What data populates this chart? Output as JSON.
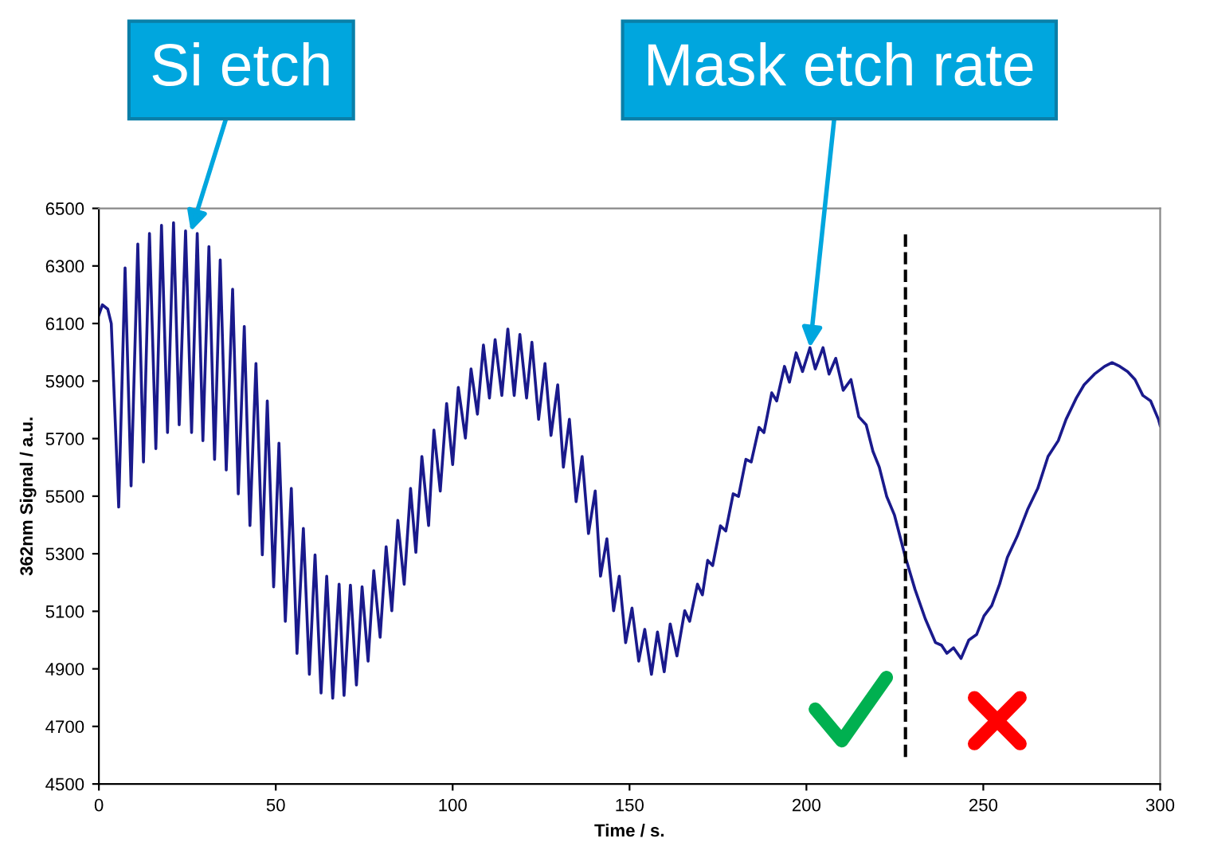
{
  "chart_data": {
    "type": "line",
    "xlabel": "Time / s.",
    "ylabel": "362nm Signal / a.u.",
    "xlim": [
      0,
      300
    ],
    "xticks": [
      0,
      50,
      100,
      150,
      200,
      250,
      300
    ],
    "ylim": [
      4500,
      6500
    ],
    "yticks": [
      4500,
      4700,
      4900,
      5100,
      5300,
      5500,
      5700,
      5900,
      6100,
      6300,
      6500
    ],
    "grid": false,
    "legend": false,
    "marker": "none",
    "line_style": "solid",
    "series": [
      {
        "color": "#1a1a8c",
        "x": [
          0,
          1.0,
          2.5,
          3.5,
          5.6,
          7.4,
          9.1,
          11.0,
          12.6,
          14.3,
          16.1,
          17.7,
          19.4,
          21.1,
          22.7,
          24.5,
          26.2,
          27.8,
          29.4,
          31.1,
          32.7,
          34.3,
          36.0,
          37.8,
          39.4,
          41.1,
          42.7,
          44.4,
          46.2,
          47.6,
          49.4,
          50.9,
          52.7,
          54.4,
          56.0,
          57.8,
          59.5,
          61.1,
          62.8,
          64.4,
          66.1,
          67.9,
          69.3,
          71.1,
          72.8,
          74.4,
          76.1,
          77.7,
          79.5,
          81.2,
          82.8,
          84.5,
          86.3,
          88.1,
          89.6,
          91.3,
          93.2,
          94.7,
          96.5,
          98.3,
          100.0,
          101.6,
          103.6,
          105.2,
          107.0,
          108.7,
          110.4,
          112.0,
          113.9,
          115.6,
          117.4,
          119.0,
          120.9,
          122.4,
          124.3,
          126.1,
          127.8,
          129.7,
          131.3,
          133.0,
          134.9,
          136.6,
          138.4,
          140.3,
          141.8,
          143.6,
          145.5,
          147.1,
          148.9,
          150.7,
          152.6,
          154.3,
          156.2,
          157.9,
          159.8,
          161.5,
          163.4,
          165.6,
          167.0,
          169.2,
          170.6,
          172.1,
          173.5,
          175.7,
          177.2,
          179.3,
          180.8,
          182.9,
          184.4,
          186.6,
          188.0,
          190.2,
          191.6,
          193.8,
          195.2,
          197.1,
          198.9,
          201.0,
          202.5,
          204.7,
          206.4,
          208.3,
          210.4,
          212.6,
          214.8,
          216.9,
          218.8,
          220.6,
          222.7,
          224.9,
          227.8,
          230.7,
          233.6,
          236.5,
          238.2,
          239.7,
          241.6,
          243.7,
          245.9,
          248.1,
          250.2,
          252.4,
          254.6,
          256.8,
          259.6,
          262.5,
          265.4,
          268.3,
          271.2,
          273.4,
          276.3,
          278.5,
          281.4,
          284.3,
          286.4,
          288.6,
          290.8,
          292.9,
          295.1,
          297.3,
          299.5,
          300.0
        ],
        "values": [
          6130,
          6165,
          6150,
          6100,
          5462,
          6293,
          5536,
          6376,
          5619,
          6413,
          5665,
          6441,
          5721,
          6450,
          5748,
          6422,
          5721,
          6413,
          5693,
          6367,
          5628,
          6321,
          5591,
          6219,
          5508,
          6090,
          5398,
          5961,
          5296,
          5831,
          5185,
          5684,
          5065,
          5527,
          4954,
          5388,
          4881,
          5296,
          4816,
          5222,
          4798,
          5194,
          4808,
          5191,
          4844,
          5185,
          4927,
          5241,
          5010,
          5324,
          5102,
          5416,
          5194,
          5527,
          5305,
          5638,
          5398,
          5730,
          5518,
          5822,
          5610,
          5878,
          5702,
          5942,
          5785,
          6025,
          5841,
          6044,
          5850,
          6081,
          5850,
          6062,
          5841,
          6035,
          5767,
          5961,
          5711,
          5887,
          5601,
          5767,
          5481,
          5638,
          5370,
          5518,
          5222,
          5352,
          5102,
          5222,
          4991,
          5111,
          4927,
          5037,
          4881,
          5028,
          4890,
          5056,
          4945,
          5102,
          5065,
          5194,
          5157,
          5277,
          5259,
          5397,
          5379,
          5508,
          5499,
          5628,
          5619,
          5739,
          5721,
          5859,
          5831,
          5951,
          5896,
          5998,
          5933,
          6016,
          5942,
          6016,
          5924,
          5979,
          5868,
          5905,
          5776,
          5748,
          5656,
          5601,
          5499,
          5434,
          5296,
          5176,
          5074,
          4991,
          4982,
          4954,
          4973,
          4936,
          5000,
          5019,
          5084,
          5120,
          5194,
          5287,
          5361,
          5453,
          5527,
          5638,
          5693,
          5767,
          5841,
          5887,
          5924,
          5951,
          5964,
          5951,
          5933,
          5905,
          5850,
          5831,
          5767,
          5745
        ]
      }
    ],
    "ref_lines": [
      {
        "axis": "x",
        "value": 228,
        "color": "#000000",
        "line_style": "dashed"
      }
    ],
    "annotations": [
      {
        "text": "Si etch",
        "x": 26,
        "y": 6420
      },
      {
        "text": "Mask etch rate",
        "x": 201.0,
        "y": 6016
      }
    ]
  }
}
